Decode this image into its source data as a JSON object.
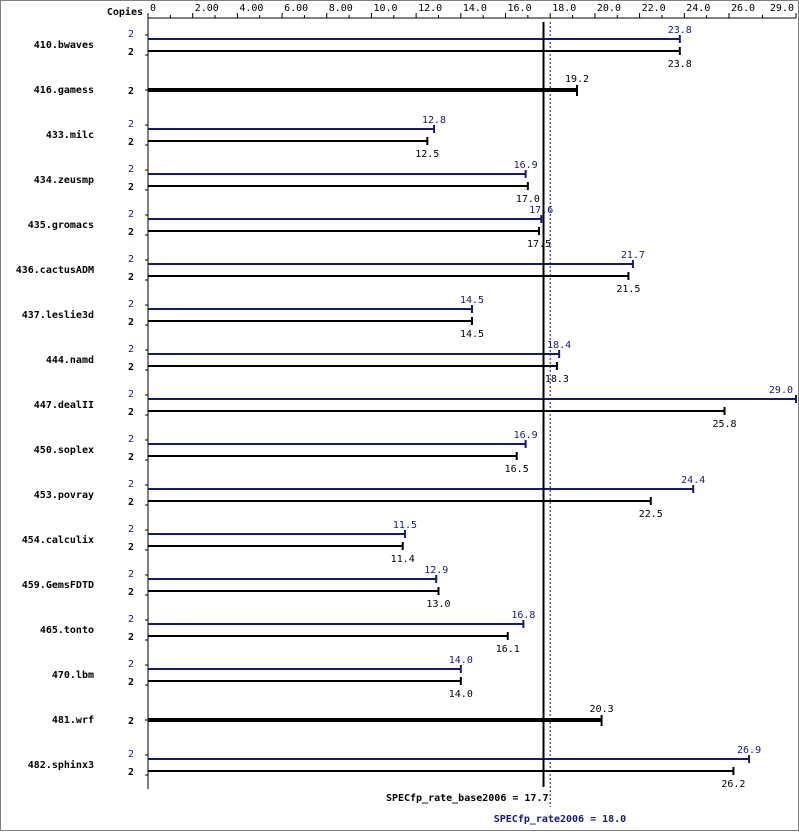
{
  "chart_data": {
    "type": "bar",
    "orientation": "horizontal",
    "copies_header": "Copies",
    "xlim": [
      0,
      29.0
    ],
    "x_ticks": [
      "0",
      "2.00",
      "4.00",
      "6.00",
      "8.00",
      "10.0",
      "12.0",
      "14.0",
      "16.0",
      "18.0",
      "20.0",
      "22.0",
      "24.0",
      "26.0",
      "29.0"
    ],
    "x_tick_values": [
      0,
      2,
      4,
      6,
      8,
      10,
      12,
      14,
      16,
      18,
      20,
      22,
      24,
      26,
      29
    ],
    "grid": false,
    "colors": {
      "peak": "#191970",
      "base": "#000000",
      "axis": "#000000",
      "frame": "#7f7f7f"
    },
    "benchmarks": [
      {
        "name": "410.bwaves",
        "peak": {
          "copies": "2",
          "value": 23.8,
          "label": "23.8"
        },
        "base": {
          "copies": "2",
          "value": 23.8,
          "label": "23.8"
        }
      },
      {
        "name": "416.gamess",
        "combined": {
          "copies": "2",
          "value": 19.2,
          "label": "19.2"
        }
      },
      {
        "name": "433.milc",
        "peak": {
          "copies": "2",
          "value": 12.8,
          "label": "12.8"
        },
        "base": {
          "copies": "2",
          "value": 12.5,
          "label": "12.5"
        }
      },
      {
        "name": "434.zeusmp",
        "peak": {
          "copies": "2",
          "value": 16.9,
          "label": "16.9"
        },
        "base": {
          "copies": "2",
          "value": 17.0,
          "label": "17.0"
        }
      },
      {
        "name": "435.gromacs",
        "peak": {
          "copies": "2",
          "value": 17.6,
          "label": "17.6"
        },
        "base": {
          "copies": "2",
          "value": 17.5,
          "label": "17.5"
        }
      },
      {
        "name": "436.cactusADM",
        "peak": {
          "copies": "2",
          "value": 21.7,
          "label": "21.7"
        },
        "base": {
          "copies": "2",
          "value": 21.5,
          "label": "21.5"
        }
      },
      {
        "name": "437.leslie3d",
        "peak": {
          "copies": "2",
          "value": 14.5,
          "label": "14.5"
        },
        "base": {
          "copies": "2",
          "value": 14.5,
          "label": "14.5"
        }
      },
      {
        "name": "444.namd",
        "peak": {
          "copies": "2",
          "value": 18.4,
          "label": "18.4"
        },
        "base": {
          "copies": "2",
          "value": 18.3,
          "label": "18.3"
        }
      },
      {
        "name": "447.dealII",
        "peak": {
          "copies": "2",
          "value": 29.0,
          "label": "29.0"
        },
        "base": {
          "copies": "2",
          "value": 25.8,
          "label": "25.8"
        }
      },
      {
        "name": "450.soplex",
        "peak": {
          "copies": "2",
          "value": 16.9,
          "label": "16.9"
        },
        "base": {
          "copies": "2",
          "value": 16.5,
          "label": "16.5"
        }
      },
      {
        "name": "453.povray",
        "peak": {
          "copies": "2",
          "value": 24.4,
          "label": "24.4"
        },
        "base": {
          "copies": "2",
          "value": 22.5,
          "label": "22.5"
        }
      },
      {
        "name": "454.calculix",
        "peak": {
          "copies": "2",
          "value": 11.5,
          "label": "11.5"
        },
        "base": {
          "copies": "2",
          "value": 11.4,
          "label": "11.4"
        }
      },
      {
        "name": "459.GemsFDTD",
        "peak": {
          "copies": "2",
          "value": 12.9,
          "label": "12.9"
        },
        "base": {
          "copies": "2",
          "value": 13.0,
          "label": "13.0"
        }
      },
      {
        "name": "465.tonto",
        "peak": {
          "copies": "2",
          "value": 16.8,
          "label": "16.8"
        },
        "base": {
          "copies": "2",
          "value": 16.1,
          "label": "16.1"
        }
      },
      {
        "name": "470.lbm",
        "peak": {
          "copies": "2",
          "value": 14.0,
          "label": "14.0"
        },
        "base": {
          "copies": "2",
          "value": 14.0,
          "label": "14.0"
        }
      },
      {
        "name": "481.wrf",
        "combined": {
          "copies": "2",
          "value": 20.3,
          "label": "20.3"
        }
      },
      {
        "name": "482.sphinx3",
        "peak": {
          "copies": "2",
          "value": 26.9,
          "label": "26.9"
        },
        "base": {
          "copies": "2",
          "value": 26.2,
          "label": "26.2"
        }
      }
    ],
    "reference_lines": {
      "base": {
        "value": 17.7,
        "label": "SPECfp_rate_base2006 = 17.7"
      },
      "peak": {
        "value": 18.0,
        "label": "SPECfp_rate2006 = 18.0"
      }
    }
  }
}
